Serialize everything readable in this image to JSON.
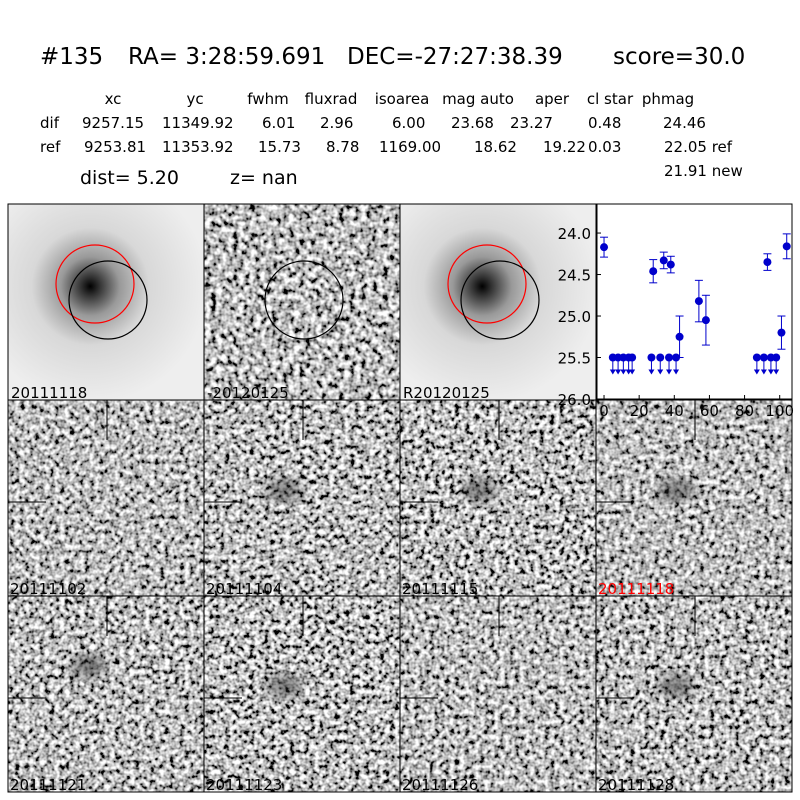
{
  "header": {
    "id": "#135",
    "ra": "RA= 3:28:59.691",
    "dec": "DEC=-27:27:38.39",
    "score": "score=30.0"
  },
  "table": {
    "columns": [
      "xc",
      "yc",
      "fwhm",
      "fluxrad",
      "isoarea",
      "mag auto",
      "aper",
      "cl star",
      "phmag"
    ],
    "rows": [
      {
        "name": "dif",
        "cells": [
          "9257.15",
          "11349.92",
          "6.01",
          "2.96",
          "6.00",
          "23.68",
          "23.27",
          "0.48",
          "24.46"
        ]
      },
      {
        "name": "ref",
        "cells": [
          "9253.81",
          "11353.92",
          "15.73",
          "8.78",
          "1169.00",
          "18.62",
          "19.22",
          "0.03",
          "22.05 ref"
        ]
      }
    ],
    "extra": "21.91 new"
  },
  "info": {
    "dist": "dist=  5.20",
    "z": "z=   nan"
  },
  "top_stamps": [
    {
      "label": "20111118"
    },
    {
      "label": "-20120125"
    },
    {
      "label": "R20120125"
    }
  ],
  "stamps": [
    {
      "label": "20111102"
    },
    {
      "label": "20111104"
    },
    {
      "label": "20111115"
    },
    {
      "label": "20111118",
      "color": "#ff0000"
    },
    {
      "label": "20111121"
    },
    {
      "label": "20111123"
    },
    {
      "label": "20111126"
    },
    {
      "label": "20111128"
    }
  ],
  "chart_data": {
    "type": "errorbar",
    "xlim": [
      -4,
      107
    ],
    "xticks": [
      0,
      20,
      40,
      60,
      80,
      100
    ],
    "ylim": [
      26.0,
      23.65
    ],
    "yticks": [
      {
        "value": 24,
        "label": "24.0"
      },
      {
        "value": 24.5,
        "label": "24.5"
      },
      {
        "value": 25,
        "label": "25.0"
      },
      {
        "value": 25.5,
        "label": "25.5"
      },
      {
        "value": 26,
        "label": "26.0"
      }
    ],
    "series": [
      {
        "color": "#0000cc",
        "x": [
          0,
          28,
          34,
          38,
          43,
          54,
          58,
          93,
          101,
          104
        ],
        "values": [
          24.17,
          24.46,
          24.33,
          24.38,
          25.25,
          24.82,
          25.05,
          24.35,
          25.2,
          24.16
        ],
        "errors": [
          0.12,
          0.14,
          0.1,
          0.1,
          0.25,
          0.25,
          0.3,
          0.1,
          0.2,
          0.15
        ]
      },
      {
        "color": "#0000cc",
        "upper_limit": true,
        "x": [
          5,
          8,
          11,
          14,
          16,
          27,
          32,
          37,
          41,
          87,
          91,
          95,
          98
        ],
        "values": [
          25.5,
          25.5,
          25.5,
          25.5,
          25.5,
          25.5,
          25.5,
          25.5,
          25.5,
          25.5,
          25.5,
          25.5,
          25.5
        ]
      }
    ]
  }
}
